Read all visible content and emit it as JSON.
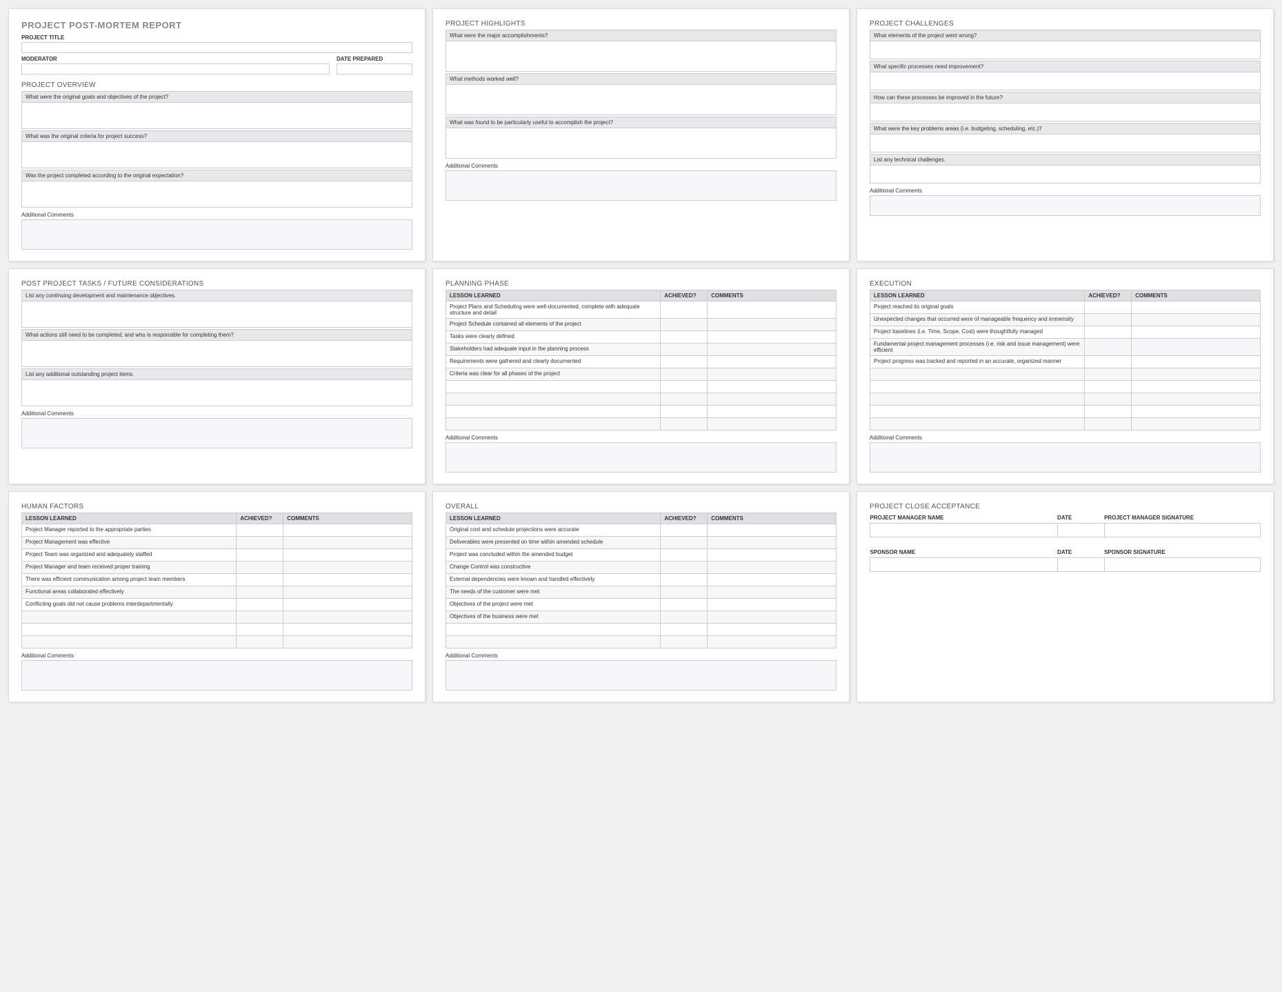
{
  "mainTitle": "PROJECT POST-MORTEM REPORT",
  "labels": {
    "projectTitle": "PROJECT TITLE",
    "moderator": "MODERATOR",
    "datePrepared": "DATE PREPARED",
    "additionalComments": "Additional Comments",
    "lessonLearned": "LESSON LEARNED",
    "achieved": "ACHIEVED?",
    "comments": "COMMENTS"
  },
  "p1": {
    "overviewHeading": "PROJECT OVERVIEW",
    "q1": "What were the original goals and objectives of the project?",
    "q2": "What was the original criteria for project success?",
    "q3": "Was the project completed according to the original expectation?"
  },
  "p2": {
    "heading": "PROJECT HIGHLIGHTS",
    "q1": "What were the major accomplishments?",
    "q2": "What methods worked well?",
    "q3": "What was found to be particularly useful to accomplish the project?"
  },
  "p3": {
    "heading": "PROJECT CHALLENGES",
    "q1": "What elements of the project went wrong?",
    "q2": "What specific processes need improvement?",
    "q3": "How can these processes be improved in the future?",
    "q4": "What were the key problems areas (i.e. budgeting, scheduling, etc.)?",
    "q5": "List any technical challenges."
  },
  "p4": {
    "heading": "POST PROJECT TASKS / FUTURE CONSIDERATIONS",
    "q1": "List any continuing development and maintenance objectives.",
    "q2": "What actions still need to be completed, and who is responsible for completing them?",
    "q3": "List any additional outstanding project items."
  },
  "p5": {
    "heading": "PLANNING PHASE",
    "rows": [
      "Project Plans and Scheduling were well-documented, complete with adequate structure and detail",
      "Project Schedule contained all elements of the project",
      "Tasks were clearly defined",
      "Stakeholders had adequate input in the planning process",
      "Requirements were gathered and clearly documented",
      "Criteria was clear for all phases of the project",
      "",
      "",
      "",
      ""
    ]
  },
  "p6": {
    "heading": "EXECUTION",
    "rows": [
      "Project reached its original goals",
      "Unexpected changes that occurred were of manageable frequency and immensity",
      "Project baselines (i.e. Time, Scope, Cost) were thoughtfully managed",
      "Fundamental project management processes (i.e. risk and issue management) were efficient",
      "Project progress was tracked and reported in an accurate, organized manner",
      "",
      "",
      "",
      "",
      ""
    ]
  },
  "p7": {
    "heading": "HUMAN FACTORS",
    "rows": [
      "Project Manager reported to the appropriate parties",
      "Project Management was effective",
      "Project Team was organized and adequately staffed",
      "Project Manager and team received proper training",
      "There was efficient communication among project team members",
      "Functional areas collaborated effectively",
      "Conflicting goals did not cause problems interdepartmentally",
      "",
      "",
      ""
    ]
  },
  "p8": {
    "heading": "OVERALL",
    "rows": [
      "Original cost and schedule projections were accurate",
      "Deliverables were presented on time within amended schedule",
      "Project was concluded within the amended budget",
      "Change Control was constructive",
      "External dependencies were known and handled effectively",
      "The needs of the customer were met",
      "Objectives of the project were met",
      "Objectives of the business were met",
      "",
      ""
    ]
  },
  "p9": {
    "heading": "PROJECT CLOSE ACCEPTANCE",
    "pmName": "PROJECT MANAGER NAME",
    "date": "DATE",
    "pmSig": "PROJECT MANAGER SIGNATURE",
    "sponsorName": "SPONSOR NAME",
    "sponsorSig": "SPONSOR SIGNATURE"
  }
}
